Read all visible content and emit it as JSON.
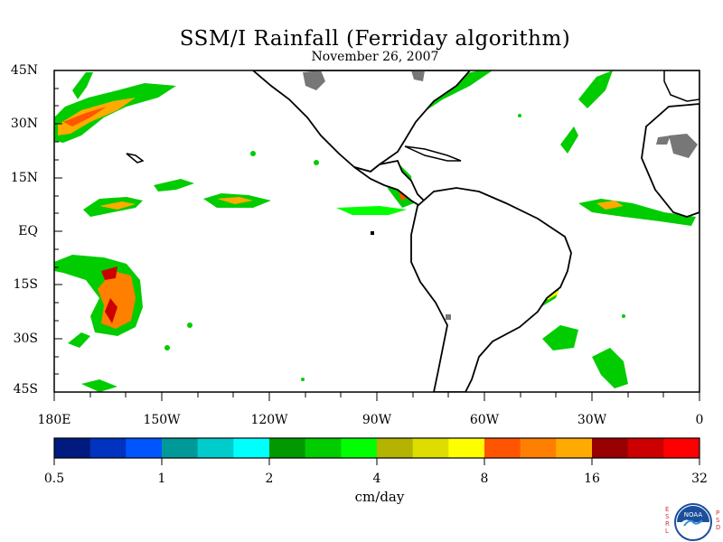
{
  "title": "SSM/I Rainfall (Ferriday algorithm)",
  "date": "November 26, 2007",
  "axes": {
    "lat_labels": [
      "45N",
      "30N",
      "15N",
      "EQ",
      "15S",
      "30S",
      "45S"
    ],
    "lon_labels": [
      "180E",
      "150W",
      "120W",
      "90W",
      "60W",
      "30W",
      "0"
    ]
  },
  "colorbar": {
    "colors": [
      "#001a80",
      "#0033bf",
      "#0055ff",
      "#00999a",
      "#00cccc",
      "#00ffff",
      "#009900",
      "#00cc00",
      "#00ff00",
      "#b3b300",
      "#dddd00",
      "#ffff00",
      "#ff5500",
      "#ff8000",
      "#ffaa00",
      "#990000",
      "#cc0000",
      "#ff0000"
    ],
    "tick_labels": [
      "0.5",
      "1",
      "2",
      "4",
      "8",
      "16",
      "32"
    ],
    "units": "cm/day"
  },
  "logo": {
    "left_letters": [
      "E",
      "S",
      "R",
      "L"
    ],
    "right_letters": [
      "P",
      "S",
      "D"
    ],
    "center_text": "NOAA"
  }
}
